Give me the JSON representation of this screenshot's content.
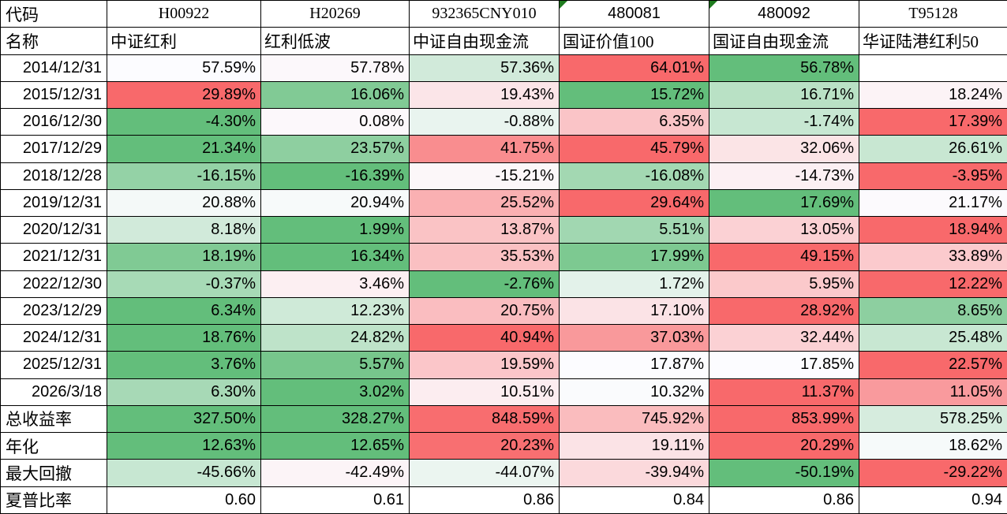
{
  "heatmap": {
    "min_color": "#63BE7B",
    "mid_color": "#FCFCFF",
    "max_color": "#F8696B",
    "flag_color": "#1E7B1E"
  },
  "table": {
    "corner_labels": {
      "code": "代码",
      "name": "名称"
    },
    "columns": [
      {
        "code": "H00922",
        "name": "中证红利",
        "flagged": false
      },
      {
        "code": "H20269",
        "name": "红利低波",
        "flagged": false
      },
      {
        "code": "932365CNY010",
        "name": "中证自由现金流",
        "flagged": false
      },
      {
        "code": "480081",
        "name": "国证价值100",
        "flagged": true
      },
      {
        "code": "480092",
        "name": "国证自由现金流",
        "flagged": true
      },
      {
        "code": "T95128",
        "name": "华证陆港红利50",
        "flagged": false
      }
    ],
    "rows": [
      {
        "label": "2014/12/31",
        "label_type": "date",
        "format": "pct",
        "heatmap": true,
        "values": [
          57.59,
          57.78,
          57.36,
          64.01,
          56.78,
          null
        ]
      },
      {
        "label": "2015/12/31",
        "label_type": "date",
        "format": "pct",
        "heatmap": true,
        "values": [
          29.89,
          16.06,
          19.43,
          15.72,
          16.71,
          18.24
        ]
      },
      {
        "label": "2016/12/30",
        "label_type": "date",
        "format": "pct",
        "heatmap": true,
        "values": [
          -4.3,
          0.08,
          -0.88,
          6.35,
          -1.74,
          17.39
        ]
      },
      {
        "label": "2017/12/29",
        "label_type": "date",
        "format": "pct",
        "heatmap": true,
        "values": [
          21.34,
          23.57,
          41.75,
          45.79,
          32.06,
          26.61
        ]
      },
      {
        "label": "2018/12/28",
        "label_type": "date",
        "format": "pct",
        "heatmap": true,
        "values": [
          -16.15,
          -16.39,
          -15.21,
          -16.08,
          -14.73,
          -3.95
        ]
      },
      {
        "label": "2019/12/31",
        "label_type": "date",
        "format": "pct",
        "heatmap": true,
        "values": [
          20.88,
          20.94,
          25.52,
          29.64,
          17.69,
          21.17
        ]
      },
      {
        "label": "2020/12/31",
        "label_type": "date",
        "format": "pct",
        "heatmap": true,
        "values": [
          8.18,
          1.99,
          13.87,
          5.51,
          13.05,
          18.94
        ]
      },
      {
        "label": "2021/12/31",
        "label_type": "date",
        "format": "pct",
        "heatmap": true,
        "values": [
          18.19,
          16.34,
          35.53,
          17.99,
          49.15,
          33.89
        ]
      },
      {
        "label": "2022/12/30",
        "label_type": "date",
        "format": "pct",
        "heatmap": true,
        "values": [
          -0.37,
          3.46,
          -2.76,
          1.72,
          5.95,
          12.22
        ]
      },
      {
        "label": "2023/12/29",
        "label_type": "date",
        "format": "pct",
        "heatmap": true,
        "values": [
          6.34,
          12.23,
          20.75,
          17.1,
          28.92,
          8.65
        ]
      },
      {
        "label": "2024/12/31",
        "label_type": "date",
        "format": "pct",
        "heatmap": true,
        "values": [
          18.76,
          24.82,
          40.94,
          37.03,
          32.44,
          25.48
        ]
      },
      {
        "label": "2025/12/31",
        "label_type": "date",
        "format": "pct",
        "heatmap": true,
        "values": [
          3.76,
          5.57,
          19.59,
          17.87,
          17.85,
          22.57
        ]
      },
      {
        "label": "2026/3/18",
        "label_type": "date",
        "format": "pct",
        "heatmap": true,
        "values": [
          6.3,
          3.02,
          10.51,
          10.32,
          11.37,
          11.05
        ]
      },
      {
        "label": "总收益率",
        "label_type": "text",
        "format": "pct",
        "heatmap": true,
        "values": [
          327.5,
          328.27,
          848.59,
          745.92,
          853.99,
          578.25
        ]
      },
      {
        "label": "年化",
        "label_type": "text",
        "format": "pct",
        "heatmap": true,
        "values": [
          12.63,
          12.65,
          20.23,
          19.11,
          20.29,
          18.62
        ]
      },
      {
        "label": "最大回撤",
        "label_type": "text",
        "format": "pct",
        "heatmap": true,
        "values": [
          -45.66,
          -42.49,
          -44.07,
          -39.94,
          -50.19,
          -29.22
        ]
      },
      {
        "label": "夏普比率",
        "label_type": "text",
        "format": "num",
        "heatmap": false,
        "values": [
          0.6,
          0.61,
          0.86,
          0.84,
          0.86,
          0.94
        ]
      }
    ]
  }
}
